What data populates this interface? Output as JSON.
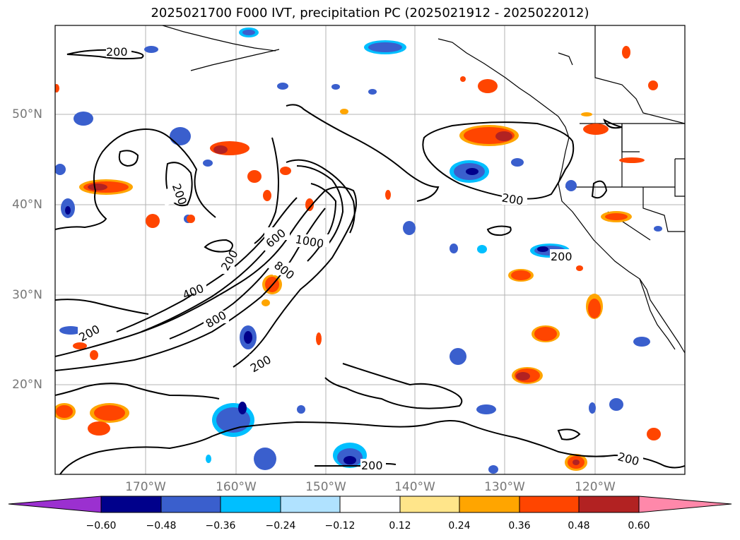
{
  "title": "2025021700 F000 IVT, precipitation PC (2025021912 - 2025022012)",
  "lat_labels": [
    "50°N",
    "40°N",
    "30°N",
    "20°N"
  ],
  "lon_labels": [
    "170°W",
    "160°W",
    "150°W",
    "140°W",
    "130°W",
    "120°W"
  ],
  "contour_labels": [
    "200",
    "200",
    "200",
    "200",
    "200",
    "200",
    "200",
    "200",
    "400",
    "600",
    "800",
    "800",
    "1000"
  ],
  "colorbar": {
    "ticks": [
      "−0.60",
      "−0.48",
      "−0.36",
      "−0.24",
      "−0.12",
      "0.12",
      "0.24",
      "0.36",
      "0.48",
      "0.60"
    ],
    "colors": [
      "#9b30d0",
      "#00008b",
      "#3a5fcd",
      "#00bfff",
      "#b0e2ff",
      "#ffffff",
      "#ffe58a",
      "#ffa500",
      "#ff4500",
      "#b22222",
      "#ff88aa"
    ]
  },
  "colors": {
    "neg_dark": "#00008b",
    "neg_mid": "#3a5fcd",
    "neg_light": "#00bfff",
    "neg_pale": "#b0e2ff",
    "pos_pale": "#ffe58a",
    "pos_light": "#ffa500",
    "pos_mid": "#ff4500",
    "pos_dark": "#b22222"
  }
}
